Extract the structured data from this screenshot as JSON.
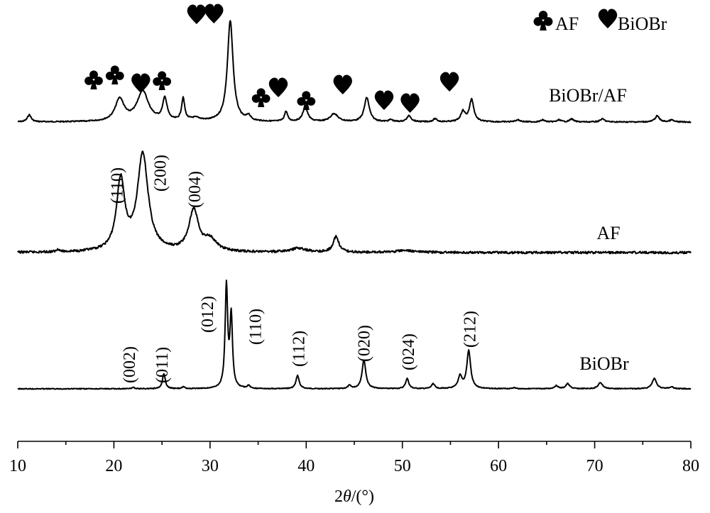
{
  "chart_data": {
    "type": "line",
    "xlabel_prefix": "2",
    "xlabel_theta": "θ",
    "xlabel_suffix": "/(°)",
    "xlim": [
      10,
      80
    ],
    "xticks": [
      10,
      20,
      30,
      40,
      50,
      60,
      70,
      80
    ],
    "xminor_step": 5,
    "grid": false,
    "legend": {
      "position": "top-right",
      "entries": [
        {
          "symbol": "club",
          "label": "AF"
        },
        {
          "symbol": "heart",
          "label": "BiOBr"
        }
      ]
    },
    "series": [
      {
        "name": "BiOBr/AF",
        "peaks": [
          [
            11.2,
            0.07,
            0.3
          ],
          [
            20.6,
            0.22,
            0.7
          ],
          [
            23.0,
            0.3,
            0.9
          ],
          [
            25.3,
            0.22,
            0.35
          ],
          [
            27.2,
            0.22,
            0.25
          ],
          [
            28.5,
            0.03,
            0.8
          ],
          [
            32.1,
            1.0,
            0.45
          ],
          [
            34.0,
            0.05,
            0.3
          ],
          [
            37.9,
            0.1,
            0.25
          ],
          [
            39.9,
            0.14,
            0.4
          ],
          [
            42.9,
            0.08,
            0.6
          ],
          [
            46.3,
            0.24,
            0.4
          ],
          [
            48.8,
            0.02,
            0.3
          ],
          [
            50.7,
            0.06,
            0.35
          ],
          [
            53.4,
            0.03,
            0.3
          ],
          [
            56.3,
            0.1,
            0.35
          ],
          [
            57.2,
            0.22,
            0.35
          ],
          [
            62.0,
            0.02,
            0.4
          ],
          [
            64.6,
            0.02,
            0.3
          ],
          [
            66.3,
            0.02,
            0.3
          ],
          [
            67.6,
            0.03,
            0.3
          ],
          [
            70.8,
            0.03,
            0.35
          ],
          [
            76.5,
            0.06,
            0.35
          ],
          [
            78.0,
            0.02,
            0.3
          ]
        ]
      },
      {
        "name": "AF",
        "peaks": [
          [
            14.2,
            0.03,
            0.2
          ],
          [
            20.7,
            0.72,
            0.65
          ],
          [
            23.0,
            1.0,
            0.85
          ],
          [
            28.3,
            0.42,
            0.75
          ],
          [
            30.0,
            0.12,
            1.0
          ],
          [
            39.2,
            0.04,
            1.2
          ],
          [
            43.1,
            0.16,
            0.45
          ],
          [
            50.3,
            0.02,
            1.5
          ]
        ]
      },
      {
        "name": "BiOBr",
        "peaks": [
          [
            22.0,
            0.015,
            0.2
          ],
          [
            25.2,
            0.15,
            0.22
          ],
          [
            27.2,
            0.02,
            0.2
          ],
          [
            31.7,
            1.0,
            0.2
          ],
          [
            32.2,
            0.7,
            0.2
          ],
          [
            34.0,
            0.03,
            0.2
          ],
          [
            39.1,
            0.13,
            0.25
          ],
          [
            44.5,
            0.03,
            0.25
          ],
          [
            46.0,
            0.28,
            0.3
          ],
          [
            50.5,
            0.1,
            0.25
          ],
          [
            53.2,
            0.05,
            0.25
          ],
          [
            56.0,
            0.12,
            0.3
          ],
          [
            56.9,
            0.37,
            0.3
          ],
          [
            61.6,
            0.01,
            0.3
          ],
          [
            66.0,
            0.03,
            0.3
          ],
          [
            67.2,
            0.05,
            0.3
          ],
          [
            70.6,
            0.06,
            0.35
          ],
          [
            76.2,
            0.1,
            0.35
          ],
          [
            78.0,
            0.02,
            0.3
          ]
        ]
      }
    ],
    "annotations": {
      "af_hkl": [
        {
          "text": "(110)",
          "x": 20.3
        },
        {
          "text": "(200)",
          "x": 24.8
        },
        {
          "text": "(004)",
          "x": 28.4
        }
      ],
      "biobr_hkl": [
        {
          "text": "(002)",
          "x": 21.6
        },
        {
          "text": "(011)",
          "x": 25.0
        },
        {
          "text": "(012)",
          "x": 29.7
        },
        {
          "text": "(110)",
          "x": 34.7
        },
        {
          "text": "(112)",
          "x": 39.2
        },
        {
          "text": "(020)",
          "x": 46.0
        },
        {
          "text": "(024)",
          "x": 50.6
        },
        {
          "text": "(212)",
          "x": 57.0
        }
      ],
      "markers": [
        {
          "symbol": "club",
          "x": 17.9
        },
        {
          "symbol": "club",
          "x": 20.1
        },
        {
          "symbol": "heart",
          "x": 22.8
        },
        {
          "symbol": "club",
          "x": 25.0
        },
        {
          "symbol": "heart",
          "x": 28.6
        },
        {
          "symbol": "heart",
          "x": 30.4
        },
        {
          "symbol": "club",
          "x": 35.3
        },
        {
          "symbol": "heart",
          "x": 37.1
        },
        {
          "symbol": "club",
          "x": 40.0
        },
        {
          "symbol": "heart",
          "x": 43.8
        },
        {
          "symbol": "heart",
          "x": 48.1
        },
        {
          "symbol": "heart",
          "x": 50.8
        },
        {
          "symbol": "heart",
          "x": 54.9
        }
      ]
    }
  }
}
